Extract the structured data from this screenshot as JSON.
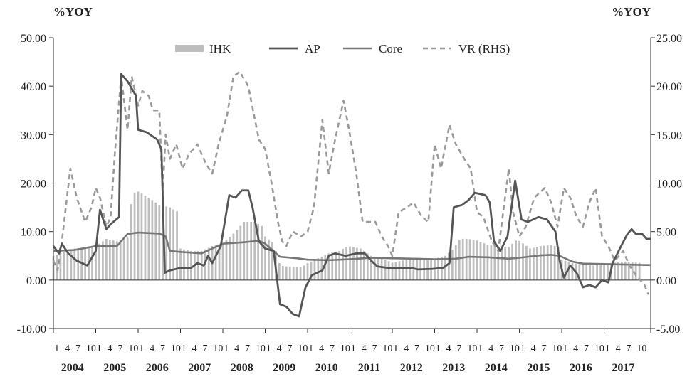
{
  "chart_data": {
    "type": "line",
    "y_unit_left": "%YOY",
    "y_unit_right": "%YOY",
    "ylim_left": [
      -10,
      50
    ],
    "ylim_right": [
      -5,
      25
    ],
    "yticks_left": [
      "50.00",
      "40.00",
      "30.00",
      "20.00",
      "10.00",
      "0.00",
      "-10.00"
    ],
    "yticks_right": [
      "25.00",
      "20.00",
      "15.00",
      "10.00",
      "5.00",
      "0.00",
      "-5.00"
    ],
    "years": [
      "2004",
      "2005",
      "2006",
      "2007",
      "2008",
      "2009",
      "2010",
      "2011",
      "2012",
      "2013",
      "2014",
      "2015",
      "2016",
      "2017"
    ],
    "month_ticks": [
      "1",
      "4",
      "7",
      "10"
    ],
    "legend": {
      "position": "top-center",
      "items": [
        "IHK",
        "AP",
        "Core",
        "VR (RHS)"
      ]
    },
    "colors": {
      "IHK": "#bdbdbd",
      "AP": "#555555",
      "Core": "#777777",
      "VR": "#9a9a9a"
    },
    "series": [
      {
        "name": "IHK",
        "type": "bar",
        "axis": "left",
        "points": [
          [
            2004.0,
            5.0
          ],
          [
            2004.5,
            6.5
          ],
          [
            2005.0,
            7.0
          ],
          [
            2005.25,
            8.5
          ],
          [
            2005.5,
            8.0
          ],
          [
            2005.75,
            9.0
          ],
          [
            2005.85,
            17.0
          ],
          [
            2005.95,
            18.5
          ],
          [
            2006.25,
            17.0
          ],
          [
            2006.5,
            15.5
          ],
          [
            2006.75,
            15.0
          ],
          [
            2006.95,
            14.0
          ],
          [
            2007.0,
            6.5
          ],
          [
            2007.25,
            6.0
          ],
          [
            2007.5,
            6.0
          ],
          [
            2007.75,
            7.0
          ],
          [
            2008.0,
            7.5
          ],
          [
            2008.3,
            10.0
          ],
          [
            2008.5,
            12.0
          ],
          [
            2008.75,
            12.0
          ],
          [
            2008.95,
            11.0
          ],
          [
            2009.0,
            9.0
          ],
          [
            2009.2,
            7.5
          ],
          [
            2009.35,
            3.0
          ],
          [
            2009.6,
            2.7
          ],
          [
            2009.85,
            2.6
          ],
          [
            2010.0,
            3.5
          ],
          [
            2010.5,
            5.5
          ],
          [
            2010.75,
            6.0
          ],
          [
            2010.95,
            7.0
          ],
          [
            2011.25,
            6.5
          ],
          [
            2011.5,
            5.0
          ],
          [
            2011.75,
            4.5
          ],
          [
            2012.0,
            3.6
          ],
          [
            2012.5,
            4.5
          ],
          [
            2012.95,
            4.3
          ],
          [
            2013.25,
            5.0
          ],
          [
            2013.45,
            6.5
          ],
          [
            2013.6,
            8.5
          ],
          [
            2013.75,
            8.5
          ],
          [
            2013.95,
            8.3
          ],
          [
            2014.25,
            7.3
          ],
          [
            2014.5,
            7.0
          ],
          [
            2014.75,
            6.8
          ],
          [
            2014.95,
            8.4
          ],
          [
            2015.25,
            6.5
          ],
          [
            2015.5,
            7.0
          ],
          [
            2015.75,
            7.2
          ],
          [
            2015.95,
            6.8
          ],
          [
            2016.0,
            4.2
          ],
          [
            2016.25,
            3.5
          ],
          [
            2016.5,
            3.2
          ],
          [
            2016.75,
            3.0
          ],
          [
            2016.95,
            3.3
          ],
          [
            2017.25,
            3.6
          ],
          [
            2017.5,
            3.8
          ],
          [
            2017.75,
            3.6
          ],
          [
            2017.9,
            3.5
          ]
        ]
      },
      {
        "name": "AP",
        "type": "line",
        "axis": "left",
        "points": [
          [
            2004.0,
            7.0
          ],
          [
            2004.13,
            5.5
          ],
          [
            2004.2,
            7.5
          ],
          [
            2004.35,
            5.5
          ],
          [
            2004.55,
            4.0
          ],
          [
            2004.8,
            3.0
          ],
          [
            2005.0,
            6.0
          ],
          [
            2005.1,
            14.5
          ],
          [
            2005.25,
            10.5
          ],
          [
            2005.35,
            11.5
          ],
          [
            2005.55,
            13.0
          ],
          [
            2005.6,
            42.5
          ],
          [
            2005.75,
            41.0
          ],
          [
            2005.95,
            38.0
          ],
          [
            2006.0,
            31.0
          ],
          [
            2006.2,
            30.5
          ],
          [
            2006.45,
            29.0
          ],
          [
            2006.55,
            27.0
          ],
          [
            2006.63,
            1.5
          ],
          [
            2006.75,
            2.0
          ],
          [
            2007.0,
            2.5
          ],
          [
            2007.25,
            2.5
          ],
          [
            2007.4,
            3.5
          ],
          [
            2007.55,
            3.0
          ],
          [
            2007.65,
            5.0
          ],
          [
            2007.75,
            3.5
          ],
          [
            2007.95,
            7.0
          ],
          [
            2008.15,
            17.5
          ],
          [
            2008.3,
            17.0
          ],
          [
            2008.45,
            18.5
          ],
          [
            2008.6,
            18.5
          ],
          [
            2008.7,
            15.0
          ],
          [
            2008.85,
            8.0
          ],
          [
            2009.0,
            6.5
          ],
          [
            2009.2,
            6.0
          ],
          [
            2009.35,
            -5.0
          ],
          [
            2009.5,
            -5.5
          ],
          [
            2009.65,
            -7.0
          ],
          [
            2009.8,
            -7.5
          ],
          [
            2009.95,
            -1.5
          ],
          [
            2010.1,
            1.0
          ],
          [
            2010.35,
            2.0
          ],
          [
            2010.5,
            5.0
          ],
          [
            2010.65,
            5.5
          ],
          [
            2010.9,
            5.0
          ],
          [
            2011.15,
            5.5
          ],
          [
            2011.35,
            5.5
          ],
          [
            2011.5,
            4.0
          ],
          [
            2011.65,
            2.8
          ],
          [
            2011.9,
            2.5
          ],
          [
            2012.2,
            2.5
          ],
          [
            2012.45,
            2.5
          ],
          [
            2012.6,
            2.2
          ],
          [
            2012.95,
            2.3
          ],
          [
            2013.2,
            2.5
          ],
          [
            2013.35,
            3.5
          ],
          [
            2013.45,
            15.0
          ],
          [
            2013.65,
            15.5
          ],
          [
            2013.8,
            16.5
          ],
          [
            2013.95,
            18.0
          ],
          [
            2014.2,
            17.5
          ],
          [
            2014.3,
            16.0
          ],
          [
            2014.4,
            8.0
          ],
          [
            2014.55,
            6.0
          ],
          [
            2014.72,
            9.0
          ],
          [
            2014.9,
            20.5
          ],
          [
            2015.05,
            12.5
          ],
          [
            2015.2,
            12.0
          ],
          [
            2015.45,
            13.0
          ],
          [
            2015.65,
            12.5
          ],
          [
            2015.85,
            10.0
          ],
          [
            2015.95,
            4.0
          ],
          [
            2016.05,
            0.5
          ],
          [
            2016.2,
            3.0
          ],
          [
            2016.35,
            1.5
          ],
          [
            2016.5,
            -1.5
          ],
          [
            2016.65,
            -1.0
          ],
          [
            2016.8,
            -1.5
          ],
          [
            2016.95,
            0.0
          ],
          [
            2017.1,
            -0.5
          ],
          [
            2017.2,
            3.5
          ],
          [
            2017.4,
            7.0
          ],
          [
            2017.55,
            9.5
          ],
          [
            2017.65,
            10.5
          ],
          [
            2017.75,
            9.5
          ],
          [
            2017.9,
            9.5
          ],
          [
            2018.0,
            8.5
          ],
          [
            2018.1,
            8.5
          ]
        ]
      },
      {
        "name": "Core",
        "type": "line",
        "axis": "left",
        "points": [
          [
            2004.0,
            6.0
          ],
          [
            2004.5,
            6.2
          ],
          [
            2005.0,
            7.0
          ],
          [
            2005.5,
            7.0
          ],
          [
            2005.75,
            9.5
          ],
          [
            2006.0,
            9.8
          ],
          [
            2006.5,
            9.6
          ],
          [
            2006.65,
            9.0
          ],
          [
            2006.75,
            6.0
          ],
          [
            2007.0,
            5.8
          ],
          [
            2007.5,
            5.5
          ],
          [
            2008.0,
            7.5
          ],
          [
            2008.5,
            7.8
          ],
          [
            2008.85,
            8.1
          ],
          [
            2009.0,
            7.5
          ],
          [
            2009.35,
            4.8
          ],
          [
            2009.75,
            4.5
          ],
          [
            2010.0,
            4.2
          ],
          [
            2010.5,
            4.1
          ],
          [
            2011.0,
            4.3
          ],
          [
            2011.5,
            4.6
          ],
          [
            2012.0,
            4.5
          ],
          [
            2012.5,
            4.4
          ],
          [
            2013.0,
            4.3
          ],
          [
            2013.5,
            4.4
          ],
          [
            2013.8,
            4.8
          ],
          [
            2014.25,
            4.7
          ],
          [
            2014.75,
            4.4
          ],
          [
            2015.0,
            4.6
          ],
          [
            2015.5,
            5.1
          ],
          [
            2015.75,
            5.2
          ],
          [
            2015.95,
            5.0
          ],
          [
            2016.25,
            3.8
          ],
          [
            2016.5,
            3.4
          ],
          [
            2017.0,
            3.3
          ],
          [
            2017.5,
            3.2
          ],
          [
            2018.0,
            3.1
          ],
          [
            2018.1,
            3.1
          ]
        ]
      },
      {
        "name": "VR (RHS)",
        "type": "line",
        "axis": "right",
        "style": "dashed",
        "points": [
          [
            2004.0,
            2.0
          ],
          [
            2004.1,
            1.0
          ],
          [
            2004.2,
            4.0
          ],
          [
            2004.4,
            11.5
          ],
          [
            2004.55,
            8.5
          ],
          [
            2004.75,
            6.0
          ],
          [
            2004.9,
            7.5
          ],
          [
            2005.0,
            9.5
          ],
          [
            2005.1,
            8.5
          ],
          [
            2005.25,
            5.5
          ],
          [
            2005.35,
            6.5
          ],
          [
            2005.45,
            13.0
          ],
          [
            2005.6,
            21.0
          ],
          [
            2005.75,
            15.5
          ],
          [
            2005.85,
            21.0
          ],
          [
            2006.0,
            18.0
          ],
          [
            2006.1,
            19.5
          ],
          [
            2006.25,
            19.0
          ],
          [
            2006.35,
            17.5
          ],
          [
            2006.5,
            17.5
          ],
          [
            2006.58,
            9.0
          ],
          [
            2006.65,
            15.0
          ],
          [
            2006.75,
            12.5
          ],
          [
            2006.9,
            14.0
          ],
          [
            2007.05,
            11.5
          ],
          [
            2007.2,
            13.0
          ],
          [
            2007.4,
            14.0
          ],
          [
            2007.6,
            12.0
          ],
          [
            2007.75,
            11.0
          ],
          [
            2007.9,
            14.0
          ],
          [
            2008.1,
            17.0
          ],
          [
            2008.25,
            21.0
          ],
          [
            2008.4,
            21.5
          ],
          [
            2008.6,
            20.0
          ],
          [
            2008.85,
            14.5
          ],
          [
            2009.0,
            13.5
          ],
          [
            2009.15,
            10.0
          ],
          [
            2009.3,
            6.0
          ],
          [
            2009.4,
            4.0
          ],
          [
            2009.5,
            3.5
          ],
          [
            2009.65,
            5.0
          ],
          [
            2009.85,
            4.5
          ],
          [
            2010.0,
            5.0
          ],
          [
            2010.15,
            7.5
          ],
          [
            2010.35,
            16.5
          ],
          [
            2010.5,
            11.0
          ],
          [
            2010.65,
            14.5
          ],
          [
            2010.85,
            18.5
          ],
          [
            2011.0,
            15.0
          ],
          [
            2011.15,
            11.0
          ],
          [
            2011.3,
            6.0
          ],
          [
            2011.45,
            6.0
          ],
          [
            2011.6,
            6.0
          ],
          [
            2011.75,
            4.5
          ],
          [
            2011.9,
            3.5
          ],
          [
            2012.0,
            2.5
          ],
          [
            2012.15,
            7.0
          ],
          [
            2012.35,
            7.5
          ],
          [
            2012.5,
            8.0
          ],
          [
            2012.7,
            6.5
          ],
          [
            2012.85,
            6.0
          ],
          [
            2013.0,
            14.0
          ],
          [
            2013.15,
            11.5
          ],
          [
            2013.35,
            16.0
          ],
          [
            2013.5,
            14.0
          ],
          [
            2013.7,
            12.5
          ],
          [
            2013.85,
            11.5
          ],
          [
            2014.0,
            7.0
          ],
          [
            2014.15,
            6.5
          ],
          [
            2014.35,
            4.0
          ],
          [
            2014.5,
            3.0
          ],
          [
            2014.75,
            11.5
          ],
          [
            2014.85,
            7.0
          ],
          [
            2015.0,
            4.5
          ],
          [
            2015.15,
            5.5
          ],
          [
            2015.35,
            8.5
          ],
          [
            2015.6,
            9.5
          ],
          [
            2015.75,
            8.0
          ],
          [
            2015.9,
            5.5
          ],
          [
            2016.05,
            9.5
          ],
          [
            2016.2,
            8.5
          ],
          [
            2016.35,
            6.5
          ],
          [
            2016.5,
            5.5
          ],
          [
            2016.65,
            8.0
          ],
          [
            2016.8,
            9.5
          ],
          [
            2016.95,
            4.5
          ],
          [
            2017.1,
            3.5
          ],
          [
            2017.25,
            2.0
          ],
          [
            2017.45,
            3.0
          ],
          [
            2017.6,
            1.5
          ],
          [
            2017.75,
            0.5
          ],
          [
            2017.95,
            -0.5
          ],
          [
            2018.05,
            -1.5
          ]
        ]
      }
    ]
  }
}
